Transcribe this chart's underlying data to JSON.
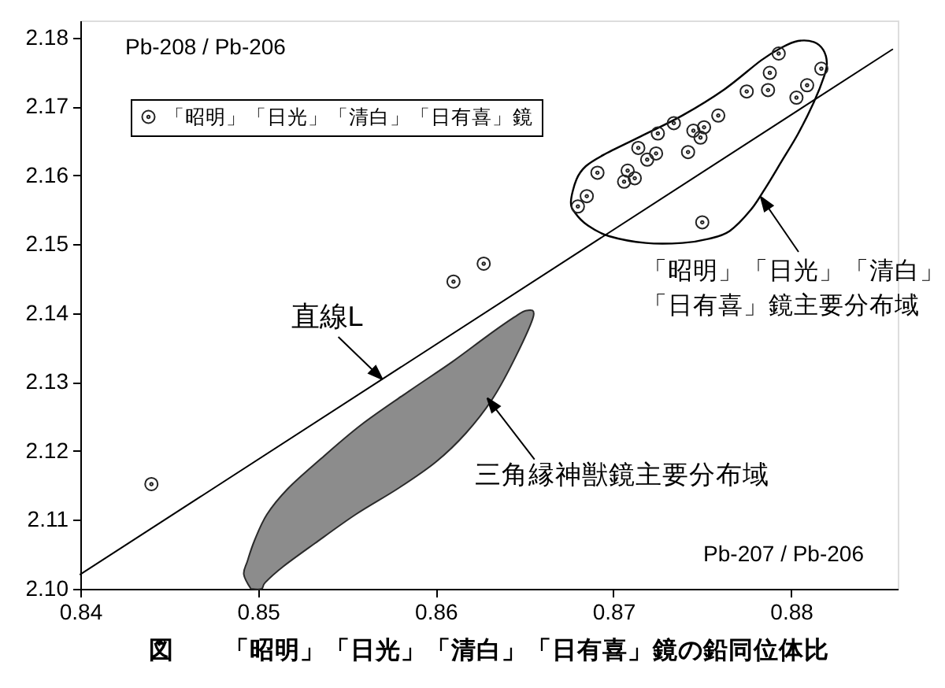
{
  "chart_data": {
    "type": "scatter",
    "title": "図　　「昭明」「日光」「清白」「日有喜」鏡の鉛同位体比",
    "xlabel": "Pb-207 / Pb-206",
    "ylabel": "Pb-208 / Pb-206",
    "xlim": [
      0.84,
      0.886
    ],
    "xticks": [
      0.84,
      0.85,
      0.86,
      0.87,
      0.88
    ],
    "ylim": [
      2.1,
      2.1825
    ],
    "yticks": [
      {
        "value": 2.1,
        "label": "2.10"
      },
      2.11,
      2.12,
      2.13,
      2.14,
      2.15,
      2.16,
      2.17,
      2.18
    ],
    "legend": "top left",
    "series": [
      {
        "type": "area",
        "color": "#8c8c8c",
        "x": [
          0.8496,
          0.8492,
          0.8494,
          0.8498,
          0.8505,
          0.8517,
          0.8535,
          0.8558,
          0.8585,
          0.8609,
          0.8629,
          0.8644,
          0.8651,
          0.8655,
          0.8645,
          0.8632,
          0.8617,
          0.86,
          0.8579,
          0.8555,
          0.8532,
          0.8514,
          0.8504,
          0.8502,
          0.8496
        ],
        "values": [
          2.1,
          2.1021,
          2.104,
          2.107,
          2.1108,
          2.1146,
          2.1188,
          2.1238,
          2.1287,
          2.1329,
          2.1367,
          2.1394,
          2.1404,
          2.1396,
          2.1337,
          2.1276,
          2.1226,
          2.1184,
          2.1146,
          2.1108,
          2.1066,
          2.1032,
          2.1009,
          2.1,
          2.1
        ]
      },
      {
        "type": "line",
        "color": "#000000",
        "x": [
          0.84,
          0.8857
        ],
        "values": [
          2.1021,
          2.1783
        ]
      },
      {
        "name": "「昭明」「日光」「清白」「日有喜」鏡",
        "color": "#222222",
        "marker": "circle",
        "x": [
          0.844,
          0.861,
          0.8627,
          0.868,
          0.8685,
          0.8691,
          0.8706,
          0.8708,
          0.8712,
          0.8714,
          0.8719,
          0.8724,
          0.8725,
          0.8734,
          0.8742,
          0.8745,
          0.8749,
          0.875,
          0.8751,
          0.8759,
          0.8775,
          0.8787,
          0.8788,
          0.8793,
          0.8803,
          0.8809,
          0.8817
        ],
        "values": [
          2.1152,
          2.1446,
          2.1472,
          2.1555,
          2.157,
          2.1604,
          2.1591,
          2.1607,
          2.1596,
          2.164,
          2.1623,
          2.1632,
          2.1661,
          2.1676,
          2.1634,
          2.1665,
          2.1655,
          2.1532,
          2.167,
          2.1687,
          2.1722,
          2.1724,
          2.1749,
          2.1777,
          2.1713,
          2.1731,
          2.1755
        ]
      }
    ],
    "annotations": [
      {
        "text": "直線L",
        "x": 0.857,
        "y": 2.1304
      },
      "「昭明」「日光」「清白」「日有喜」鏡主要分布域",
      {
        "text": "三角縁神獣鏡主要分布域",
        "x": 0.8629,
        "y": 2.1277
      }
    ]
  }
}
